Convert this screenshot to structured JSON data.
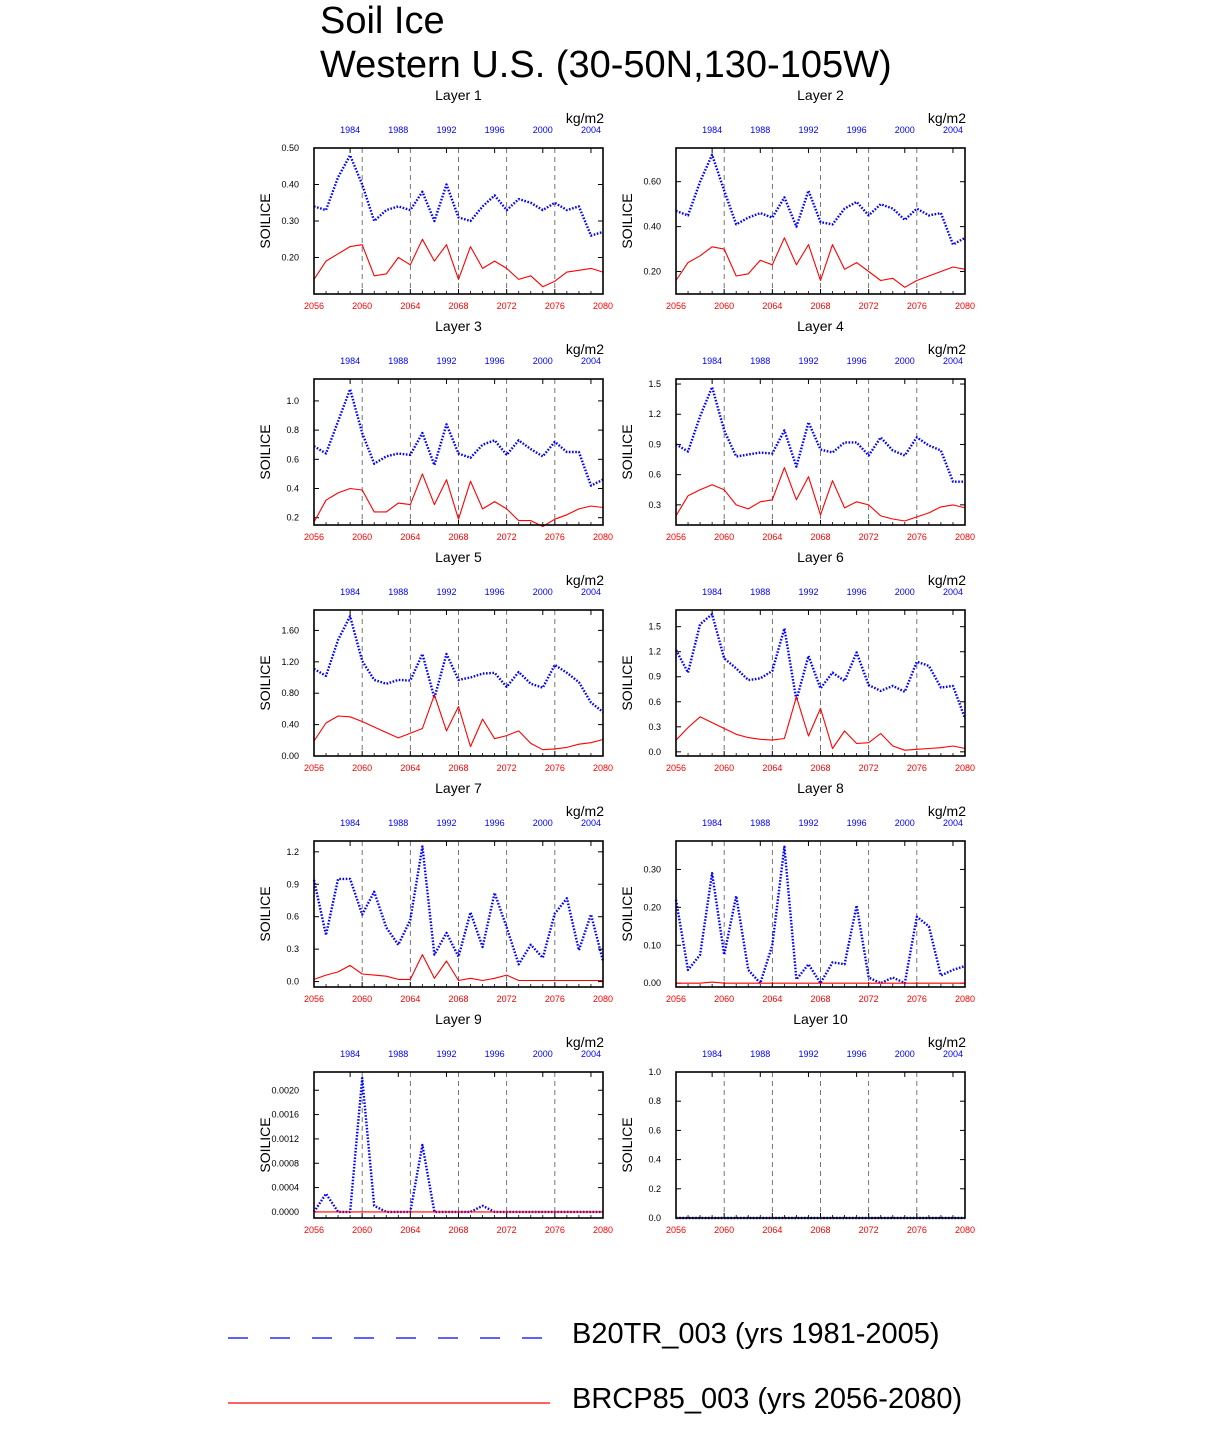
{
  "figure": {
    "title_line1": "Soil Ice",
    "title_line2": "Western U.S. (30-50N,130-105W)",
    "units": "kg/m2",
    "ylabel": "SOILICE",
    "top_axis_ticks": [
      "1984",
      "1988",
      "1992",
      "1996",
      "2000",
      "2004"
    ],
    "bottom_axis_ticks": [
      "2056",
      "2060",
      "2064",
      "2068",
      "2072",
      "2076",
      "2080"
    ]
  },
  "legend": [
    {
      "label": "B20TR_003 (yrs 1981-2005)",
      "style": "dashed",
      "color": "#0000ff"
    },
    {
      "label": "BRCP85_003 (yrs 2056-2080)",
      "style": "solid",
      "color": "#ff0000"
    }
  ],
  "colors": {
    "historical": "#0000ff",
    "future": "#ff0000"
  },
  "chart_data": [
    {
      "type": "line",
      "title": "Layer 1",
      "ylabel": "SOILICE",
      "xlabel_top": "kg/m2",
      "x_bottom": [
        2056,
        2080
      ],
      "x_top": [
        1981,
        2005
      ],
      "ylim": [
        0.1,
        0.5
      ],
      "yticks": [
        "0.20",
        "0.30",
        "0.40",
        "0.50"
      ],
      "series": [
        {
          "name": "B20TR_003 (yrs 1981-2005)",
          "values": [
            0.34,
            0.33,
            0.42,
            0.48,
            0.4,
            0.3,
            0.33,
            0.34,
            0.33,
            0.38,
            0.3,
            0.4,
            0.31,
            0.3,
            0.34,
            0.37,
            0.33,
            0.36,
            0.35,
            0.33,
            0.35,
            0.33,
            0.34,
            0.26,
            0.27
          ]
        },
        {
          "name": "BRCP85_003 (yrs 2056-2080)",
          "values": [
            0.14,
            0.19,
            0.21,
            0.23,
            0.235,
            0.15,
            0.155,
            0.2,
            0.18,
            0.25,
            0.19,
            0.235,
            0.14,
            0.23,
            0.17,
            0.19,
            0.17,
            0.14,
            0.15,
            0.12,
            0.135,
            0.16,
            0.165,
            0.17,
            0.16
          ]
        }
      ]
    },
    {
      "type": "line",
      "title": "Layer 2",
      "ylabel": "SOILICE",
      "xlabel_top": "kg/m2",
      "x_bottom": [
        2056,
        2080
      ],
      "x_top": [
        1981,
        2005
      ],
      "ylim": [
        0.1,
        0.75
      ],
      "yticks": [
        "0.20",
        "0.40",
        "0.60"
      ],
      "series": [
        {
          "name": "B20TR_003 (yrs 1981-2005)",
          "values": [
            0.47,
            0.45,
            0.6,
            0.72,
            0.56,
            0.41,
            0.44,
            0.46,
            0.44,
            0.53,
            0.4,
            0.56,
            0.42,
            0.41,
            0.48,
            0.51,
            0.45,
            0.5,
            0.48,
            0.43,
            0.48,
            0.45,
            0.46,
            0.32,
            0.35
          ]
        },
        {
          "name": "BRCP85_003 (yrs 2056-2080)",
          "values": [
            0.16,
            0.24,
            0.27,
            0.31,
            0.3,
            0.18,
            0.19,
            0.25,
            0.23,
            0.35,
            0.23,
            0.32,
            0.16,
            0.32,
            0.21,
            0.24,
            0.2,
            0.16,
            0.17,
            0.13,
            0.16,
            0.18,
            0.2,
            0.22,
            0.21
          ]
        }
      ]
    },
    {
      "type": "line",
      "title": "Layer 3",
      "ylabel": "SOILICE",
      "xlabel_top": "kg/m2",
      "x_bottom": [
        2056,
        2080
      ],
      "x_top": [
        1981,
        2005
      ],
      "ylim": [
        0.15,
        1.15
      ],
      "yticks": [
        "0.2",
        "0.4",
        "0.6",
        "0.8",
        "1.0"
      ],
      "series": [
        {
          "name": "B20TR_003 (yrs 1981-2005)",
          "values": [
            0.69,
            0.64,
            0.86,
            1.08,
            0.78,
            0.57,
            0.62,
            0.64,
            0.63,
            0.78,
            0.56,
            0.84,
            0.64,
            0.61,
            0.7,
            0.73,
            0.63,
            0.73,
            0.67,
            0.62,
            0.72,
            0.65,
            0.65,
            0.42,
            0.46
          ]
        },
        {
          "name": "BRCP85_003 (yrs 2056-2080)",
          "values": [
            0.17,
            0.32,
            0.37,
            0.4,
            0.39,
            0.24,
            0.24,
            0.3,
            0.29,
            0.5,
            0.29,
            0.46,
            0.19,
            0.45,
            0.26,
            0.31,
            0.26,
            0.18,
            0.18,
            0.14,
            0.19,
            0.22,
            0.26,
            0.28,
            0.27
          ]
        }
      ]
    },
    {
      "type": "line",
      "title": "Layer 4",
      "ylabel": "SOILICE",
      "xlabel_top": "kg/m2",
      "x_bottom": [
        2056,
        2080
      ],
      "x_top": [
        1981,
        2005
      ],
      "ylim": [
        0.1,
        1.55
      ],
      "yticks": [
        "0.3",
        "0.6",
        "0.9",
        "1.2",
        "1.5"
      ],
      "series": [
        {
          "name": "B20TR_003 (yrs 1981-2005)",
          "values": [
            0.9,
            0.83,
            1.18,
            1.47,
            1.04,
            0.78,
            0.8,
            0.82,
            0.81,
            1.04,
            0.68,
            1.12,
            0.85,
            0.82,
            0.92,
            0.92,
            0.79,
            0.97,
            0.84,
            0.79,
            0.97,
            0.89,
            0.84,
            0.53,
            0.53
          ]
        },
        {
          "name": "BRCP85_003 (yrs 2056-2080)",
          "values": [
            0.19,
            0.39,
            0.45,
            0.5,
            0.45,
            0.3,
            0.26,
            0.33,
            0.35,
            0.67,
            0.35,
            0.58,
            0.2,
            0.54,
            0.27,
            0.33,
            0.3,
            0.19,
            0.16,
            0.14,
            0.18,
            0.22,
            0.28,
            0.3,
            0.27
          ]
        }
      ]
    },
    {
      "type": "line",
      "title": "Layer 5",
      "ylabel": "SOILICE",
      "xlabel_top": "kg/m2",
      "x_bottom": [
        2056,
        2080
      ],
      "x_top": [
        1981,
        2005
      ],
      "ylim": [
        0.0,
        1.86
      ],
      "yticks": [
        "0.00",
        "0.40",
        "0.80",
        "1.20",
        "1.60"
      ],
      "series": [
        {
          "name": "B20TR_003 (yrs 1981-2005)",
          "values": [
            1.11,
            1.02,
            1.48,
            1.78,
            1.21,
            0.97,
            0.92,
            0.97,
            0.96,
            1.3,
            0.74,
            1.3,
            0.97,
            1.0,
            1.05,
            1.06,
            0.88,
            1.07,
            0.92,
            0.87,
            1.16,
            1.06,
            0.94,
            0.68,
            0.56
          ]
        },
        {
          "name": "BRCP85_003 (yrs 2056-2080)",
          "values": [
            0.19,
            0.42,
            0.51,
            0.5,
            0.44,
            0.37,
            0.3,
            0.23,
            0.29,
            0.35,
            0.78,
            0.32,
            0.63,
            0.12,
            0.47,
            0.22,
            0.26,
            0.32,
            0.16,
            0.08,
            0.09,
            0.11,
            0.15,
            0.17,
            0.21
          ]
        }
      ]
    },
    {
      "type": "line",
      "title": "Layer 6",
      "ylabel": "SOILICE",
      "xlabel_top": "kg/m2",
      "x_bottom": [
        2056,
        2080
      ],
      "x_top": [
        1981,
        2005
      ],
      "ylim": [
        -0.05,
        1.7
      ],
      "yticks": [
        "0.0",
        "0.3",
        "0.6",
        "0.9",
        "1.2",
        "1.5"
      ],
      "series": [
        {
          "name": "B20TR_003 (yrs 1981-2005)",
          "values": [
            1.22,
            0.95,
            1.53,
            1.65,
            1.12,
            1.0,
            0.86,
            0.88,
            0.97,
            1.48,
            0.62,
            1.15,
            0.76,
            0.95,
            0.85,
            1.19,
            0.8,
            0.73,
            0.79,
            0.72,
            1.08,
            1.03,
            0.77,
            0.79,
            0.4
          ]
        },
        {
          "name": "BRCP85_003 (yrs 2056-2080)",
          "values": [
            0.14,
            0.29,
            0.42,
            0.35,
            0.28,
            0.21,
            0.17,
            0.15,
            0.14,
            0.16,
            0.66,
            0.19,
            0.52,
            0.04,
            0.25,
            0.1,
            0.11,
            0.22,
            0.07,
            0.02,
            0.03,
            0.04,
            0.05,
            0.07,
            0.04
          ]
        }
      ]
    },
    {
      "type": "line",
      "title": "Layer 7",
      "ylabel": "SOILICE",
      "xlabel_top": "kg/m2",
      "x_bottom": [
        2056,
        2080
      ],
      "x_top": [
        1981,
        2005
      ],
      "ylim": [
        -0.05,
        1.3
      ],
      "yticks": [
        "0.0",
        "0.3",
        "0.6",
        "0.9",
        "1.2"
      ],
      "series": [
        {
          "name": "B20TR_003 (yrs 1981-2005)",
          "values": [
            0.94,
            0.43,
            0.95,
            0.95,
            0.62,
            0.83,
            0.5,
            0.34,
            0.57,
            1.25,
            0.25,
            0.45,
            0.23,
            0.64,
            0.32,
            0.82,
            0.5,
            0.16,
            0.34,
            0.22,
            0.63,
            0.77,
            0.29,
            0.62,
            0.19
          ]
        },
        {
          "name": "BRCP85_003 (yrs 2056-2080)",
          "values": [
            0.02,
            0.06,
            0.09,
            0.15,
            0.07,
            0.06,
            0.05,
            0.02,
            0.02,
            0.25,
            0.03,
            0.19,
            0.01,
            0.03,
            0.01,
            0.03,
            0.06,
            0.01,
            0.01,
            0.01,
            0.01,
            0.01,
            0.01,
            0.01,
            0.01
          ]
        }
      ]
    },
    {
      "type": "line",
      "title": "Layer 8",
      "ylabel": "SOILICE",
      "xlabel_top": "kg/m2",
      "x_bottom": [
        2056,
        2080
      ],
      "x_top": [
        1981,
        2005
      ],
      "ylim": [
        -0.01,
        0.375
      ],
      "yticks": [
        "0.00",
        "0.10",
        "0.20",
        "0.30"
      ],
      "series": [
        {
          "name": "B20TR_003 (yrs 1981-2005)",
          "values": [
            0.22,
            0.035,
            0.075,
            0.29,
            0.075,
            0.23,
            0.035,
            0.0,
            0.1,
            0.36,
            0.01,
            0.05,
            0.0,
            0.055,
            0.05,
            0.205,
            0.015,
            0.0,
            0.015,
            0.0,
            0.175,
            0.15,
            0.02,
            0.035,
            0.045
          ]
        },
        {
          "name": "BRCP85_003 (yrs 2056-2080)",
          "values": [
            0.0,
            0.0,
            0.0,
            0.003,
            0.0,
            0.0,
            0.0,
            0.0,
            0.0,
            0.0,
            0.0,
            0.0,
            0.0,
            0.0,
            0.0,
            0.0,
            0.0,
            0.0,
            0.0,
            0.0,
            0.0,
            0.0,
            0.0,
            0.0,
            0.0
          ]
        }
      ]
    },
    {
      "type": "line",
      "title": "Layer 9",
      "ylabel": "SOILICE",
      "xlabel_top": "kg/m2",
      "x_bottom": [
        2056,
        2080
      ],
      "x_top": [
        1981,
        2005
      ],
      "ylim": [
        -0.0001,
        0.0023
      ],
      "yticks": [
        "0.0000",
        "0.0004",
        "0.0008",
        "0.0012",
        "0.0016",
        "0.0020"
      ],
      "series": [
        {
          "name": "B20TR_003 (yrs 1981-2005)",
          "values": [
            0.0,
            0.0003,
            0.0,
            0.0,
            0.0022,
            0.0001,
            0.0,
            0.0,
            0.0,
            0.0011,
            0.0,
            0.0,
            0.0,
            0.0,
            0.0001,
            0.0,
            0.0,
            0.0,
            0.0,
            0.0,
            0.0,
            0.0,
            0.0,
            0.0,
            0.0
          ]
        },
        {
          "name": "BRCP85_003 (yrs 2056-2080)",
          "values": [
            0,
            0,
            0,
            0,
            0,
            0,
            0,
            0,
            0,
            0,
            0,
            0,
            0,
            0,
            0,
            0,
            0,
            0,
            0,
            0,
            0,
            0,
            0,
            0,
            0
          ]
        }
      ]
    },
    {
      "type": "line",
      "title": "Layer 10",
      "ylabel": "SOILICE",
      "xlabel_top": "kg/m2",
      "x_bottom": [
        2056,
        2080
      ],
      "x_top": [
        1981,
        2005
      ],
      "ylim": [
        0.0,
        1.0
      ],
      "yticks": [
        "0.0",
        "0.2",
        "0.4",
        "0.6",
        "0.8",
        "1.0"
      ],
      "series": [
        {
          "name": "B20TR_003 (yrs 1981-2005)",
          "values": [
            0,
            0,
            0,
            0,
            0,
            0,
            0,
            0,
            0,
            0,
            0,
            0,
            0,
            0,
            0,
            0,
            0,
            0,
            0,
            0,
            0,
            0,
            0,
            0,
            0
          ]
        },
        {
          "name": "BRCP85_003 (yrs 2056-2080)",
          "values": [
            0,
            0,
            0,
            0,
            0,
            0,
            0,
            0,
            0,
            0,
            0,
            0,
            0,
            0,
            0,
            0,
            0,
            0,
            0,
            0,
            0,
            0,
            0,
            0,
            0
          ]
        }
      ]
    }
  ]
}
